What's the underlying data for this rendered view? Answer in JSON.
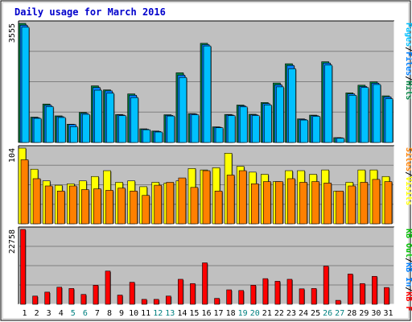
{
  "chart_data": {
    "title": "Daily usage for March 2016",
    "days": [
      "1",
      "2",
      "3",
      "4",
      "5",
      "6",
      "7",
      "8",
      "9",
      "10",
      "11",
      "12",
      "13",
      "14",
      "15",
      "16",
      "17",
      "18",
      "19",
      "20",
      "21",
      "22",
      "23",
      "24",
      "25",
      "26",
      "27",
      "28",
      "29",
      "30",
      "31"
    ],
    "weekend_days": [
      "5",
      "6",
      "12",
      "13",
      "19",
      "20",
      "26",
      "27"
    ],
    "panels": [
      {
        "type": "bar",
        "max_label": "3555",
        "ymax": 3555,
        "legend": [
          {
            "text": "Hits",
            "color": "#008040"
          },
          {
            "text": "/",
            "color": "#000000"
          },
          {
            "text": "Files",
            "color": "#0080ff"
          },
          {
            "text": "/",
            "color": "#000000"
          },
          {
            "text": "Pages",
            "color": "#00c0ff"
          }
        ],
        "series": [
          {
            "name": "Hits",
            "color": "#008040",
            "values": [
              3555,
              757,
              1148,
              794,
              546,
              898,
              1690,
              1570,
              835,
              1450,
              408,
              342,
              828,
              2080,
              862,
              2960,
              467,
              836,
              1117,
              842,
              1192,
              1775,
              2350,
              704,
              816,
              2410,
              145,
              1480,
              1710,
              1810,
              1392
            ]
          },
          {
            "name": "Files",
            "color": "#0080ff",
            "values": [
              3500,
              740,
              1110,
              770,
              536,
              870,
              1640,
              1540,
              820,
              1410,
              395,
              330,
              810,
              2010,
              850,
              2920,
              455,
              820,
              1092,
              825,
              1160,
              1720,
              2300,
              690,
              800,
              2370,
              140,
              1450,
              1670,
              1770,
              1362
            ]
          },
          {
            "name": "Pages",
            "color": "#00c0ff",
            "values": [
              3440,
              720,
              1070,
              745,
              470,
              840,
              1560,
              1470,
              800,
              1340,
              380,
              312,
              790,
              1940,
              825,
              2880,
              440,
              800,
              1062,
              800,
              1120,
              1660,
              2200,
              670,
              780,
              2310,
              128,
              1410,
              1640,
              1730,
              1307
            ]
          }
        ]
      },
      {
        "type": "bar",
        "max_label": "104",
        "ymax": 104,
        "legend": [
          {
            "text": "Visits",
            "color": "#ffff00"
          },
          {
            "text": "/",
            "color": "#000000"
          },
          {
            "text": "Sites",
            "color": "#ff8000"
          }
        ],
        "series": [
          {
            "name": "Visits",
            "color": "#ffff00",
            "values": [
              104,
              75,
              59,
              53,
              55,
              59,
              65,
              73,
              57,
              59,
              51,
              57,
              56,
              59,
              76,
              74,
              77,
              97,
              79,
              71,
              68,
              58,
              73,
              73,
              68,
              74,
              45,
              57,
              74,
              74,
              65
            ]
          },
          {
            "name": "Sites",
            "color": "#ff8000",
            "values": [
              88,
              62,
              52,
              45,
              52,
              47,
              48,
              46,
              49,
              45,
              39,
              53,
              57,
              63,
              50,
              73,
              45,
              67,
              73,
              55,
              58,
              58,
              62,
              57,
              58,
              56,
              45,
              52,
              57,
              61,
              58
            ]
          }
        ]
      },
      {
        "type": "bar",
        "max_label": "22758",
        "ymax": 22758,
        "legend": [
          {
            "text": "KB F",
            "color": "#ff0000"
          },
          {
            "text": "/",
            "color": "#000000"
          },
          {
            "text": "KB In",
            "color": "#0080ff"
          },
          {
            "text": "/",
            "color": "#000000"
          },
          {
            "text": "KB Out",
            "color": "#00c000"
          }
        ],
        "series": [
          {
            "name": "KB F",
            "color": "#ff0000",
            "values": [
              22758,
              2500,
              3700,
              5200,
              4800,
              3000,
              5800,
              10100,
              2800,
              6700,
              1500,
              1500,
              2500,
              7600,
              6300,
              12600,
              1800,
              4400,
              4200,
              5800,
              7800,
              7000,
              7600,
              4700,
              4800,
              11600,
              1200,
              9200,
              6300,
              8500,
              5100
            ]
          }
        ]
      }
    ]
  }
}
